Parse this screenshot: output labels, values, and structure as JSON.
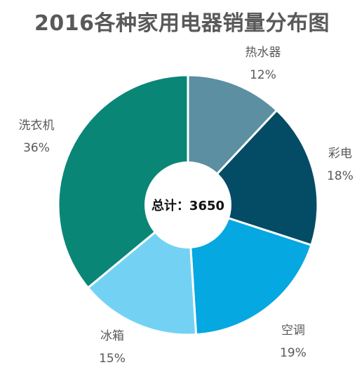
{
  "chart_data": {
    "type": "pie",
    "title": "2016各种家用电器销量分布图",
    "center_text": "总计：3650",
    "slices": [
      {
        "label": "热水器",
        "percent": 12,
        "percent_text": "12%",
        "color": "#5b8fa1"
      },
      {
        "label": "彩电",
        "percent": 18,
        "percent_text": "18%",
        "color": "#044b66"
      },
      {
        "label": "空调",
        "percent": 19,
        "percent_text": "19%",
        "color": "#05a8e0"
      },
      {
        "label": "冰箱",
        "percent": 15,
        "percent_text": "15%",
        "color": "#73d2f4"
      },
      {
        "label": "洗衣机",
        "percent": 36,
        "percent_text": "36%",
        "color": "#0a8677"
      }
    ]
  }
}
